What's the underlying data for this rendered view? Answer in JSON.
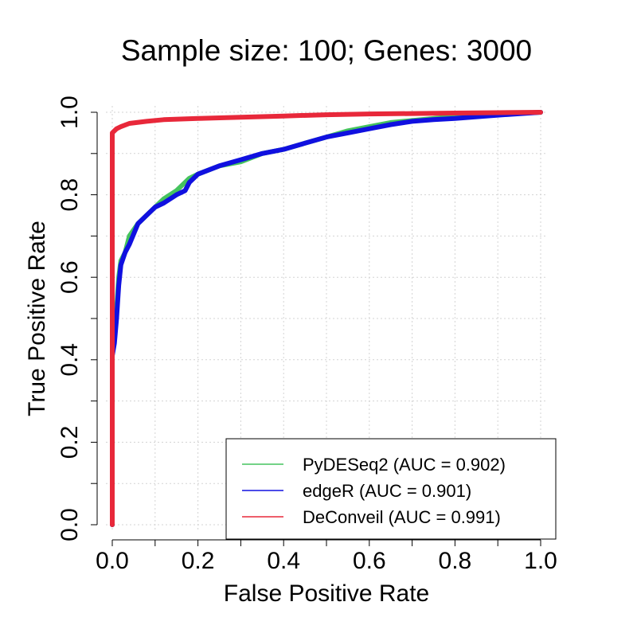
{
  "chart_data": {
    "type": "line",
    "title": "Sample size: 100; Genes: 3000",
    "xlabel": "False Positive Rate",
    "ylabel": "True Positive Rate",
    "xlim": [
      0,
      1
    ],
    "ylim": [
      0,
      1
    ],
    "xticks": [
      "0.0",
      "0.2",
      "0.4",
      "0.6",
      "0.8",
      "1.0"
    ],
    "yticks": [
      "0.0",
      "0.2",
      "0.4",
      "0.6",
      "0.8",
      "1.0"
    ],
    "grid": true,
    "legend_position": "bottom-right",
    "series": [
      {
        "name": "PyDESeq2 (AUC = 0.902)",
        "color": "#45c35e",
        "x": [
          0,
          0,
          0.005,
          0.01,
          0.015,
          0.02,
          0.03,
          0.04,
          0.06,
          0.08,
          0.1,
          0.12,
          0.15,
          0.18,
          0.2,
          0.25,
          0.3,
          0.35,
          0.4,
          0.45,
          0.5,
          0.55,
          0.6,
          0.65,
          0.7,
          0.75,
          0.8,
          0.9,
          1.0
        ],
        "y": [
          0,
          0.42,
          0.45,
          0.52,
          0.6,
          0.64,
          0.66,
          0.7,
          0.73,
          0.75,
          0.77,
          0.79,
          0.81,
          0.84,
          0.85,
          0.87,
          0.88,
          0.9,
          0.91,
          0.925,
          0.94,
          0.955,
          0.965,
          0.975,
          0.98,
          0.985,
          0.99,
          0.995,
          1.0
        ]
      },
      {
        "name": "edgeR (AUC = 0.901)",
        "color": "#1010e0",
        "x": [
          0,
          0,
          0.005,
          0.01,
          0.015,
          0.02,
          0.03,
          0.04,
          0.06,
          0.08,
          0.1,
          0.12,
          0.15,
          0.17,
          0.18,
          0.2,
          0.25,
          0.3,
          0.35,
          0.4,
          0.45,
          0.5,
          0.55,
          0.6,
          0.65,
          0.7,
          0.75,
          0.8,
          0.9,
          1.0
        ],
        "y": [
          0,
          0.41,
          0.44,
          0.5,
          0.58,
          0.63,
          0.66,
          0.68,
          0.73,
          0.75,
          0.77,
          0.78,
          0.8,
          0.81,
          0.83,
          0.85,
          0.87,
          0.885,
          0.9,
          0.91,
          0.925,
          0.94,
          0.95,
          0.96,
          0.97,
          0.978,
          0.982,
          0.985,
          0.993,
          1.0
        ]
      },
      {
        "name": "DeConveil (AUC = 0.991)",
        "color": "#e8283a",
        "x": [
          0,
          0,
          0.01,
          0.02,
          0.04,
          0.08,
          0.12,
          0.2,
          0.3,
          0.4,
          0.5,
          0.6,
          0.7,
          0.8,
          0.9,
          1.0
        ],
        "y": [
          0,
          0.95,
          0.96,
          0.965,
          0.973,
          0.978,
          0.982,
          0.985,
          0.988,
          0.991,
          0.994,
          0.996,
          0.997,
          0.998,
          0.999,
          1.0
        ]
      }
    ]
  }
}
